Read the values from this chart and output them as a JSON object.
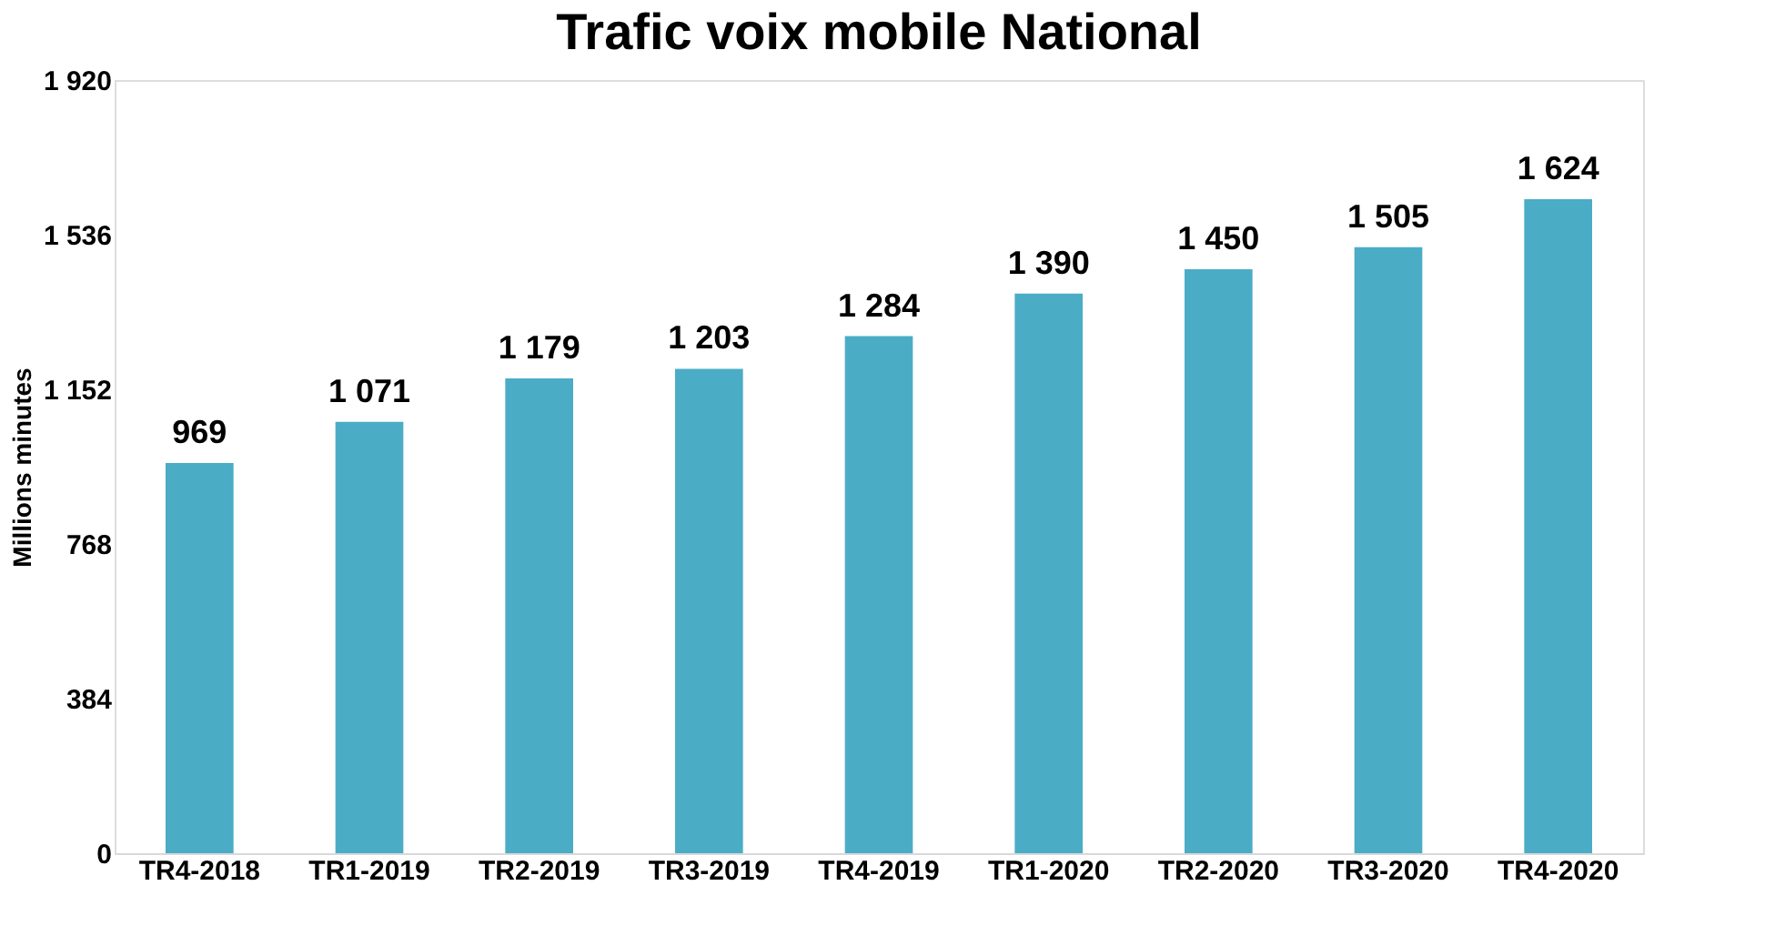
{
  "chart_data": {
    "type": "bar",
    "title": "Trafic voix mobile National",
    "ylabel": "Millions minutes",
    "categories": [
      "TR4-2018",
      "TR1-2019",
      "TR2-2019",
      "TR3-2019",
      "TR4-2019",
      "TR1-2020",
      "TR2-2020",
      "TR3-2020",
      "TR4-2020"
    ],
    "values": [
      969,
      1071,
      1179,
      1203,
      1284,
      1390,
      1450,
      1505,
      1624
    ],
    "value_labels": [
      "969",
      "1 071",
      "1 179",
      "1 203",
      "1 284",
      "1 390",
      "1 450",
      "1 505",
      "1 624"
    ],
    "color": "#4bacc6",
    "ylim": [
      0,
      1920
    ],
    "yticks": [
      0,
      {
        "value": 384,
        "label": "384"
      },
      {
        "value": 768,
        "label": "768"
      },
      {
        "value": 1152,
        "label": "1 152"
      },
      {
        "value": 1536,
        "label": "1 536"
      },
      {
        "value": 1920,
        "label": "1 920"
      }
    ],
    "grid": false
  }
}
